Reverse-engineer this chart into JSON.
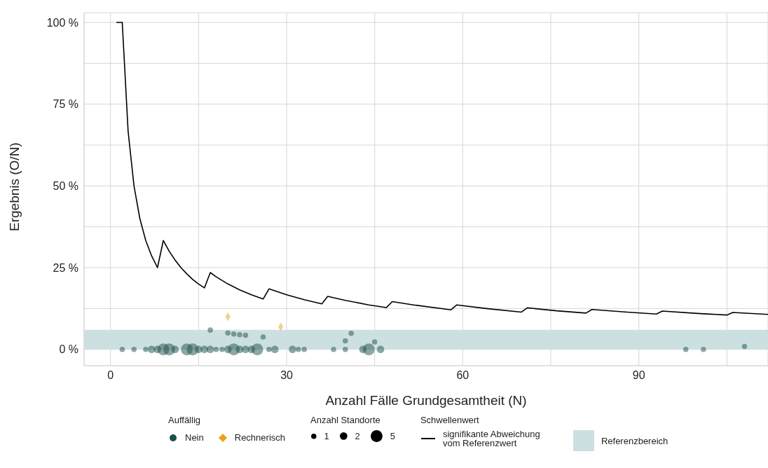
{
  "chart_data": {
    "type": "scatter",
    "xlabel": "Anzahl Fälle Grundgesamtheit (N)",
    "ylabel": "Ergebnis (O/N)",
    "legend_title": "Auffällig",
    "annotations": [
      "Anzahl Standorte",
      "Schwellenwert"
    ],
    "xlim": [
      -4.5,
      112
    ],
    "xticks": [
      0,
      {
        "value": 15,
        "label": null
      },
      30,
      {
        "value": 45,
        "label": null
      },
      60,
      {
        "value": 75,
        "label": null
      },
      90,
      {
        "value": 105,
        "label": null
      }
    ],
    "ylim": [
      -5,
      103
    ],
    "yticks": [
      {
        "value": 0,
        "label": "0 %"
      },
      {
        "value": 12.5,
        "label": null
      },
      {
        "value": 25,
        "label": "25 %"
      },
      {
        "value": 37.5,
        "label": null
      },
      {
        "value": 50,
        "label": "50 %"
      },
      {
        "value": 62.5,
        "label": null
      },
      {
        "value": 75,
        "label": "75 %"
      },
      {
        "value": 87.5,
        "label": null
      },
      {
        "value": 100,
        "label": "100 %"
      }
    ],
    "grid": true,
    "legend": "bottom",
    "size_legend": [
      1,
      2,
      5
    ],
    "bands": [
      {
        "axis": "y",
        "from": 0,
        "to": 6,
        "label": "Referenzbereich",
        "color": "#cde0e1"
      }
    ],
    "series": [
      {
        "name": "Nein",
        "type": "scatter",
        "marker": "circle",
        "color": "#1b4f4b",
        "x": [
          2,
          4,
          6,
          7,
          8,
          9,
          10,
          11,
          13,
          14,
          15,
          16,
          17,
          18,
          19,
          20,
          21,
          22,
          23,
          24,
          25,
          27,
          28,
          31,
          32,
          33,
          38,
          40,
          43,
          44,
          46,
          98,
          101,
          17,
          20,
          21,
          22,
          23,
          26,
          40,
          41,
          45,
          108
        ],
        "values": [
          0,
          0,
          0,
          0,
          0,
          0,
          0,
          0,
          0,
          0,
          0,
          0,
          0,
          0,
          0,
          0,
          0,
          0,
          0,
          0,
          0,
          0,
          0,
          0,
          0,
          0,
          0,
          0,
          0,
          0,
          0,
          0,
          0,
          5.9,
          5.0,
          4.7,
          4.5,
          4.3,
          3.8,
          2.6,
          4.9,
          2.3,
          0.9
        ],
        "sizes": [
          1,
          1,
          1,
          2,
          2,
          5,
          5,
          2,
          5,
          5,
          2,
          2,
          2,
          1,
          1,
          2,
          5,
          2,
          2,
          2,
          5,
          1,
          2,
          2,
          1,
          1,
          1,
          1,
          2,
          5,
          2,
          1,
          1,
          1,
          1,
          1,
          1,
          1,
          1,
          1,
          1,
          1,
          1
        ]
      },
      {
        "name": "Rechnerisch",
        "type": "scatter",
        "marker": "diamond",
        "color": "#e8a317",
        "x": [
          20,
          29
        ],
        "values": [
          10.0,
          6.9
        ],
        "sizes": [
          1,
          1
        ]
      },
      {
        "name": "signifikante Abweichung vom Referenzwert",
        "type": "line",
        "color": "#000000",
        "x": [
          1,
          2,
          3,
          4,
          5,
          6,
          7,
          8,
          9,
          10,
          11,
          12,
          13,
          14,
          15,
          16,
          17,
          18,
          20,
          22,
          24,
          26,
          27,
          30,
          33,
          36,
          37,
          40,
          44,
          47,
          48,
          52,
          58,
          59,
          64,
          70,
          71,
          76,
          81,
          82,
          88,
          93,
          94,
          100,
          105,
          106,
          112
        ],
        "values": [
          100,
          100,
          66.7,
          50,
          40,
          33.3,
          28.6,
          25,
          33.3,
          30,
          27.3,
          25,
          23.1,
          21.4,
          20,
          18.8,
          23.5,
          22.2,
          20,
          18.2,
          16.7,
          15.4,
          18.5,
          16.7,
          15.2,
          13.9,
          16.2,
          15,
          13.6,
          12.8,
          14.6,
          13.5,
          12.1,
          13.6,
          12.5,
          11.4,
          12.7,
          11.8,
          11.1,
          12.2,
          11.4,
          10.8,
          11.7,
          11,
          10.5,
          11.3,
          10.7
        ]
      }
    ]
  }
}
